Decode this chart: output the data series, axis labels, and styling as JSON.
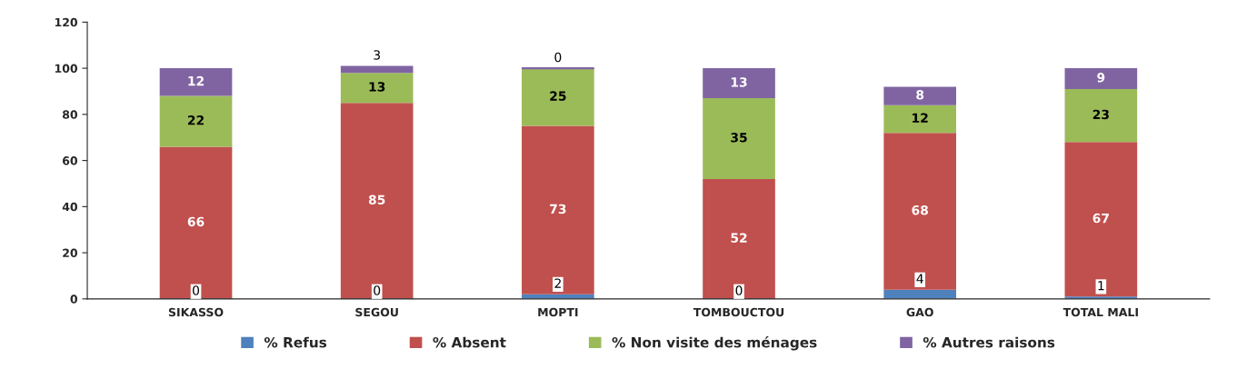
{
  "chart_data": {
    "type": "bar",
    "stacked": true,
    "legend": "bottom",
    "data_labels": true,
    "grid": false,
    "categories": [
      "SIKASSO",
      "SEGOU",
      "MOPTI",
      "TOMBOUCTOU",
      "GAO",
      "TOTAL MALI"
    ],
    "series": [
      {
        "name": "% Refus",
        "color": "#4f81bd",
        "values": [
          0,
          0,
          2,
          0,
          4,
          1
        ],
        "value_labels": [
          "0",
          "0",
          "2",
          "0",
          "4",
          "1"
        ]
      },
      {
        "name": "% Absent",
        "color": "#c0504d",
        "values": [
          66,
          85,
          73,
          52,
          68,
          67
        ],
        "value_labels": [
          "66",
          "85",
          "73",
          "52",
          "68",
          "67"
        ]
      },
      {
        "name": "% Non visite des ménages",
        "color": "#9bbb59",
        "values": [
          22,
          13,
          25,
          35,
          12,
          23
        ],
        "value_labels": [
          "22",
          "13",
          "25",
          "35",
          "12",
          "23"
        ]
      },
      {
        "name": "% Autres raisons",
        "color": "#8064a2",
        "values": [
          12,
          3,
          0,
          13,
          8,
          9
        ],
        "value_labels": [
          "12",
          "3",
          "0",
          "13",
          "8",
          "9"
        ]
      }
    ],
    "ylim": [
      0,
      120
    ],
    "yticks": [
      0,
      20,
      40,
      60,
      80,
      100,
      120
    ]
  }
}
